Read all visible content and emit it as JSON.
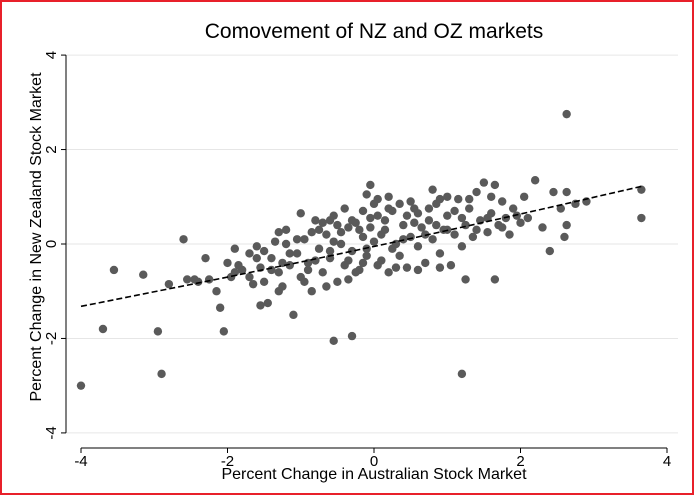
{
  "chart_data": {
    "type": "scatter",
    "title": "Comovement of NZ and OZ markets",
    "xlabel": "Percent Change in Australian Stock Market",
    "ylabel": "Percent Change in New Zealand Stock Market",
    "xlim": [
      -4.15,
      4.15
    ],
    "ylim": [
      -4.15,
      4.15
    ],
    "xticks": [
      -4,
      -2,
      0,
      2,
      4
    ],
    "yticks": [
      -4,
      -2,
      0,
      2,
      4
    ],
    "grid": "horizontal",
    "legend": "none",
    "colors": {
      "points": "#5a5a5a",
      "fit_line": "#000000",
      "frame": "#e8202a",
      "grid": "#e6e6e6"
    },
    "fit_line": {
      "style": "dashed",
      "x": [
        -4.0,
        3.65
      ],
      "y": [
        -1.32,
        1.22
      ]
    },
    "points": [
      [
        -4.0,
        -3.0
      ],
      [
        -3.7,
        -1.8
      ],
      [
        -3.55,
        -0.55
      ],
      [
        -3.15,
        -0.65
      ],
      [
        -2.95,
        -1.85
      ],
      [
        -2.9,
        -2.75
      ],
      [
        -2.8,
        -0.85
      ],
      [
        -2.6,
        0.1
      ],
      [
        -2.45,
        -0.75
      ],
      [
        -2.3,
        -0.3
      ],
      [
        -2.25,
        -0.75
      ],
      [
        -2.15,
        -1.0
      ],
      [
        -2.1,
        -1.35
      ],
      [
        -2.05,
        -1.85
      ],
      [
        -1.95,
        -0.7
      ],
      [
        -1.9,
        -0.1
      ],
      [
        -1.85,
        -0.45
      ],
      [
        -1.8,
        -0.55
      ],
      [
        -1.7,
        -0.2
      ],
      [
        -1.65,
        -0.85
      ],
      [
        -1.6,
        -0.05
      ],
      [
        -1.55,
        -0.5
      ],
      [
        -1.5,
        -0.8
      ],
      [
        -1.45,
        -1.25
      ],
      [
        -1.4,
        -0.3
      ],
      [
        -1.35,
        0.05
      ],
      [
        -1.3,
        -0.6
      ],
      [
        -1.25,
        -0.9
      ],
      [
        -1.2,
        0.3
      ],
      [
        -1.15,
        -0.45
      ],
      [
        -1.1,
        -1.5
      ],
      [
        -1.05,
        -0.2
      ],
      [
        -1.0,
        -0.7
      ],
      [
        -0.95,
        0.1
      ],
      [
        -0.9,
        -0.4
      ],
      [
        -0.85,
        -1.0
      ],
      [
        -0.8,
        0.5
      ],
      [
        -0.75,
        -0.1
      ],
      [
        -0.7,
        -0.6
      ],
      [
        -0.65,
        0.2
      ],
      [
        -0.6,
        -0.3
      ],
      [
        -0.55,
        0.6
      ],
      [
        -0.5,
        -0.8
      ],
      [
        -0.45,
        0.0
      ],
      [
        -0.4,
        -0.45
      ],
      [
        -0.35,
        0.35
      ],
      [
        -0.3,
        -0.15
      ],
      [
        -0.25,
        0.45
      ],
      [
        -0.2,
        -0.55
      ],
      [
        -0.15,
        0.15
      ],
      [
        -0.1,
        -0.25
      ],
      [
        -0.05,
        0.55
      ],
      [
        0.0,
        0.05
      ],
      [
        0.05,
        0.95
      ],
      [
        0.1,
        -0.35
      ],
      [
        0.15,
        0.3
      ],
      [
        0.2,
        -0.6
      ],
      [
        0.25,
        0.7
      ],
      [
        0.3,
        0.0
      ],
      [
        0.35,
        -0.25
      ],
      [
        0.4,
        0.4
      ],
      [
        0.45,
        -0.5
      ],
      [
        0.5,
        0.15
      ],
      [
        0.55,
        0.75
      ],
      [
        0.6,
        -0.05
      ],
      [
        0.65,
        0.35
      ],
      [
        0.7,
        -0.4
      ],
      [
        0.75,
        0.5
      ],
      [
        0.8,
        0.1
      ],
      [
        0.85,
        0.85
      ],
      [
        0.9,
        -0.2
      ],
      [
        0.95,
        0.3
      ],
      [
        1.0,
        0.6
      ],
      [
        1.05,
        -0.45
      ],
      [
        1.1,
        0.2
      ],
      [
        1.15,
        0.95
      ],
      [
        1.2,
        -0.05
      ],
      [
        1.25,
        0.4
      ],
      [
        1.3,
        0.75
      ],
      [
        1.35,
        0.15
      ],
      [
        1.4,
        1.1
      ],
      [
        1.45,
        0.5
      ],
      [
        1.5,
        1.3
      ],
      [
        1.55,
        0.25
      ],
      [
        1.6,
        0.65
      ],
      [
        1.65,
        1.25
      ],
      [
        1.7,
        0.4
      ],
      [
        1.75,
        0.9
      ],
      [
        1.8,
        0.55
      ],
      [
        1.85,
        0.2
      ],
      [
        1.9,
        0.75
      ],
      [
        1.95,
        0.6
      ],
      [
        2.05,
        1.0
      ],
      [
        2.1,
        0.55
      ],
      [
        2.2,
        1.35
      ],
      [
        2.3,
        0.35
      ],
      [
        2.4,
        -0.15
      ],
      [
        2.45,
        1.1
      ],
      [
        2.55,
        0.75
      ],
      [
        2.6,
        0.15
      ],
      [
        2.75,
        0.85
      ],
      [
        2.9,
        0.9
      ],
      [
        2.63,
        1.1
      ],
      [
        2.63,
        2.75
      ],
      [
        2.63,
        0.4
      ],
      [
        3.65,
        1.15
      ],
      [
        3.65,
        0.55
      ],
      [
        -0.55,
        -2.05
      ],
      [
        -0.3,
        -1.95
      ],
      [
        1.2,
        -2.75
      ],
      [
        1.25,
        -0.75
      ],
      [
        1.65,
        -0.75
      ],
      [
        -1.0,
        0.65
      ],
      [
        -0.6,
        0.5
      ],
      [
        -0.4,
        0.75
      ],
      [
        -0.1,
        1.05
      ],
      [
        -0.05,
        1.25
      ],
      [
        0.0,
        0.85
      ],
      [
        0.05,
        0.6
      ],
      [
        0.2,
        1.0
      ],
      [
        0.35,
        0.85
      ],
      [
        0.45,
        0.6
      ],
      [
        0.6,
        0.65
      ],
      [
        0.8,
        1.15
      ],
      [
        0.9,
        0.95
      ],
      [
        1.0,
        1.0
      ],
      [
        1.1,
        0.7
      ],
      [
        -0.15,
        0.7
      ],
      [
        -0.3,
        0.5
      ],
      [
        -0.7,
        0.45
      ],
      [
        -1.3,
        0.25
      ],
      [
        -1.6,
        -0.3
      ],
      [
        -1.9,
        -0.6
      ],
      [
        -2.0,
        -0.4
      ],
      [
        -1.7,
        -0.7
      ],
      [
        -1.4,
        -0.55
      ],
      [
        -1.15,
        -0.2
      ],
      [
        -0.9,
        -0.55
      ],
      [
        -0.75,
        0.3
      ],
      [
        -0.6,
        -0.15
      ],
      [
        -0.45,
        0.25
      ],
      [
        -0.35,
        -0.35
      ],
      [
        -0.2,
        0.3
      ],
      [
        -0.1,
        -0.1
      ],
      [
        0.1,
        0.2
      ],
      [
        0.25,
        -0.1
      ],
      [
        0.4,
        0.1
      ],
      [
        0.55,
        0.45
      ],
      [
        0.7,
        0.2
      ],
      [
        0.85,
        0.4
      ],
      [
        1.0,
        0.3
      ],
      [
        1.2,
        0.55
      ],
      [
        1.4,
        0.3
      ],
      [
        1.55,
        0.55
      ],
      [
        -0.25,
        -0.6
      ],
      [
        0.05,
        -0.45
      ],
      [
        0.3,
        -0.5
      ],
      [
        0.6,
        -0.55
      ],
      [
        0.9,
        -0.5
      ],
      [
        -0.8,
        -0.35
      ],
      [
        -1.25,
        -0.4
      ],
      [
        -1.5,
        -0.15
      ],
      [
        -1.05,
        0.1
      ],
      [
        -0.55,
        0.05
      ],
      [
        0.15,
        0.5
      ],
      [
        0.5,
        0.9
      ],
      [
        0.75,
        0.75
      ],
      [
        1.3,
        0.95
      ],
      [
        1.75,
        0.35
      ],
      [
        2.0,
        0.45
      ],
      [
        -2.4,
        -0.8
      ],
      [
        -2.55,
        -0.75
      ],
      [
        -1.55,
        -1.3
      ],
      [
        -1.3,
        -1.0
      ],
      [
        -0.95,
        -0.8
      ],
      [
        -0.65,
        -0.9
      ],
      [
        -0.35,
        -0.75
      ],
      [
        -0.15,
        -0.4
      ],
      [
        0.2,
        0.75
      ],
      [
        -0.05,
        0.35
      ],
      [
        -0.5,
        0.4
      ],
      [
        -0.85,
        0.25
      ],
      [
        -1.2,
        0.0
      ],
      [
        1.6,
        1.0
      ]
    ]
  }
}
